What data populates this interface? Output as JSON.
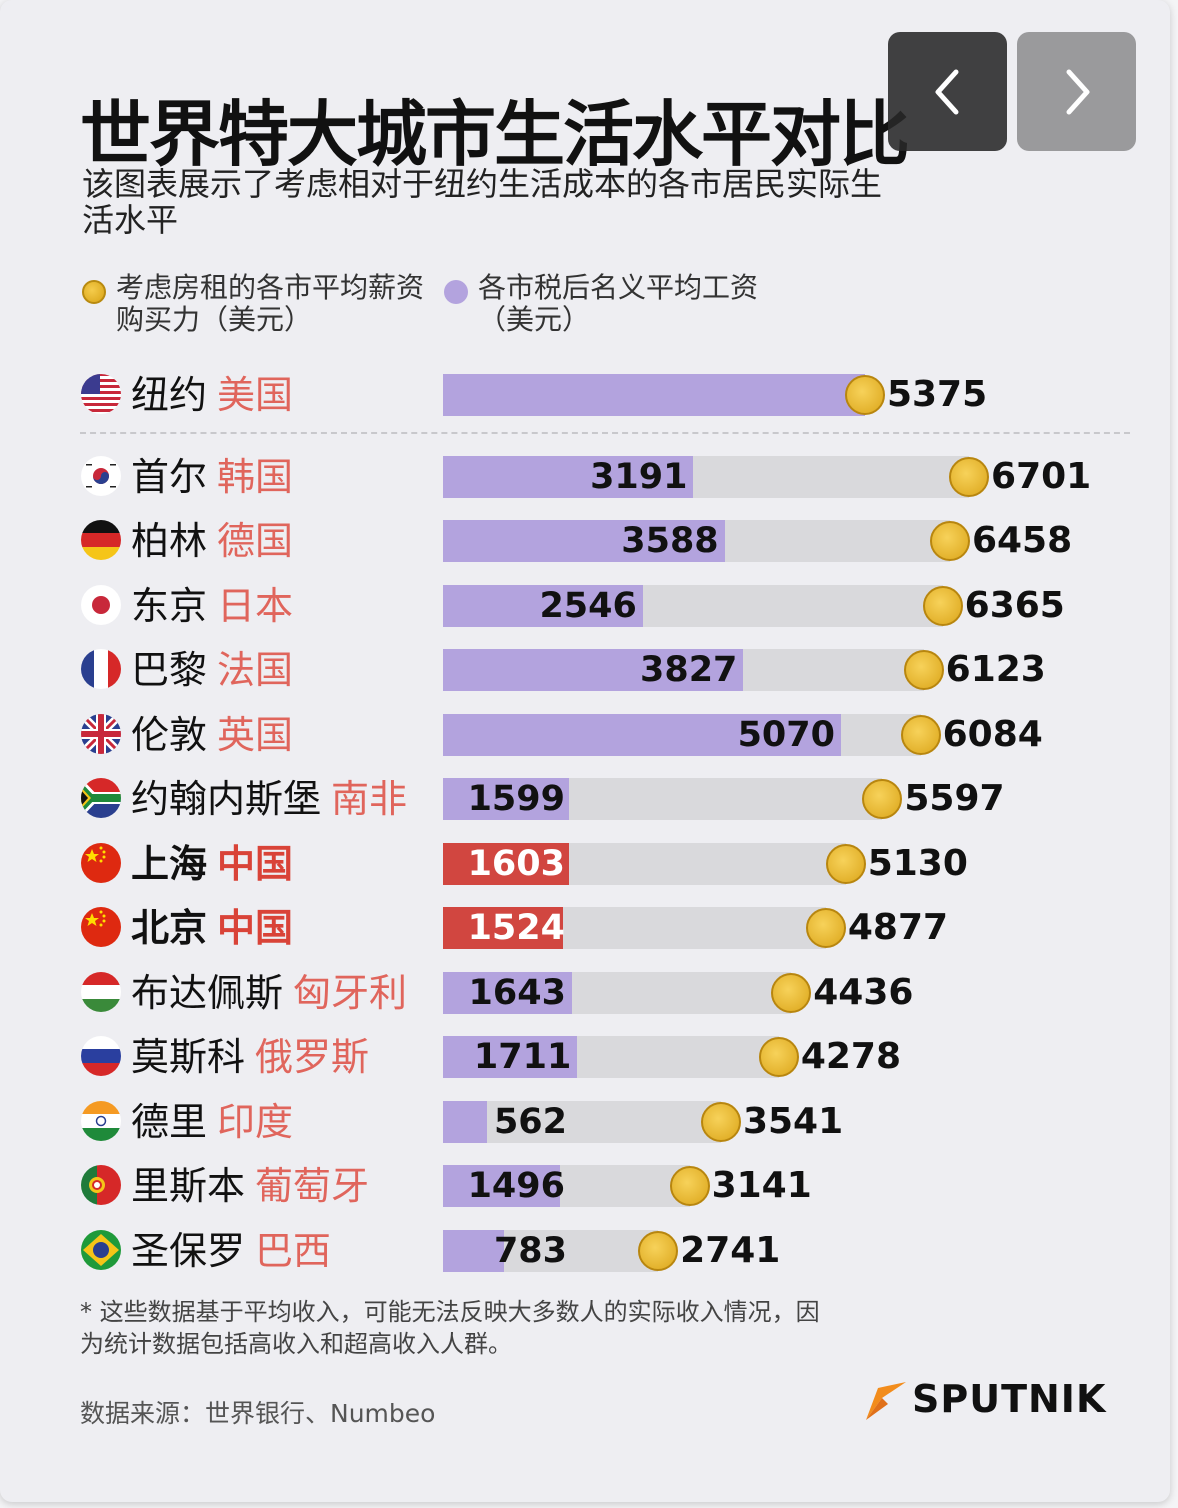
{
  "header": {
    "title": "世界特大城市生活水平对比",
    "subtitle": "该图表展示了考虑相对于纽约生活成本的各市居民实际生活水平"
  },
  "nav": {
    "prev_icon": "chevron-left-icon",
    "next_icon": "chevron-right-icon"
  },
  "legend": {
    "gold": "考虑房租的各市平均薪资购买力（美元）",
    "purple": "各市税后名义平均工资（美元）"
  },
  "colors": {
    "purple": "#b3a3de",
    "red": "#d14640",
    "gold": "#e3b12a",
    "track": "#d9d9dc",
    "country": "#e0655c"
  },
  "chart_data": {
    "type": "bar",
    "title": "世界特大城市生活水平对比",
    "series": [
      {
        "name": "各市税后名义平均工资（美元）",
        "values": [
          5375,
          3191,
          3588,
          2546,
          3827,
          5070,
          1599,
          1603,
          1524,
          1643,
          1711,
          562,
          1496,
          783
        ]
      },
      {
        "name": "考虑房租的各市平均薪资购买力（美元）",
        "values": [
          5375,
          6701,
          6458,
          6365,
          6123,
          6084,
          5597,
          5130,
          4877,
          4436,
          4278,
          3541,
          3141,
          2741
        ]
      }
    ],
    "rows": [
      {
        "city": "纽约",
        "country": "美国",
        "flag": "us",
        "nominal": 5375,
        "ppp": 5375,
        "reference": true
      },
      {
        "city": "首尔",
        "country": "韩国",
        "flag": "kr",
        "nominal": 3191,
        "ppp": 6701
      },
      {
        "city": "柏林",
        "country": "德国",
        "flag": "de",
        "nominal": 3588,
        "ppp": 6458
      },
      {
        "city": "东京",
        "country": "日本",
        "flag": "jp",
        "nominal": 2546,
        "ppp": 6365
      },
      {
        "city": "巴黎",
        "country": "法国",
        "flag": "fr",
        "nominal": 3827,
        "ppp": 6123
      },
      {
        "city": "伦敦",
        "country": "英国",
        "flag": "gb",
        "nominal": 5070,
        "ppp": 6084
      },
      {
        "city": "约翰内斯堡",
        "country": "南非",
        "flag": "za",
        "nominal": 1599,
        "ppp": 5597
      },
      {
        "city": "上海",
        "country": "中国",
        "flag": "cn",
        "nominal": 1603,
        "ppp": 5130,
        "highlight": true
      },
      {
        "city": "北京",
        "country": "中国",
        "flag": "cn",
        "nominal": 1524,
        "ppp": 4877,
        "highlight": true
      },
      {
        "city": "布达佩斯",
        "country": "匈牙利",
        "flag": "hu",
        "nominal": 1643,
        "ppp": 4436
      },
      {
        "city": "莫斯科",
        "country": "俄罗斯",
        "flag": "ru",
        "nominal": 1711,
        "ppp": 4278
      },
      {
        "city": "德里",
        "country": "印度",
        "flag": "in",
        "nominal": 562,
        "ppp": 3541
      },
      {
        "city": "里斯本",
        "country": "葡萄牙",
        "flag": "pt",
        "nominal": 1496,
        "ppp": 3141
      },
      {
        "city": "圣保罗",
        "country": "巴西",
        "flag": "br",
        "nominal": 783,
        "ppp": 2741
      }
    ]
  },
  "footnote": "* 这些数据基于平均收入，可能无法反映大多数人的实际收入情况，因为统计数据包括高收入和超高收入人群。",
  "source": "数据来源：世界银行、Numbeo",
  "logo": {
    "text": "SPUTNIK",
    "icon": "sputnik-logo-icon"
  }
}
